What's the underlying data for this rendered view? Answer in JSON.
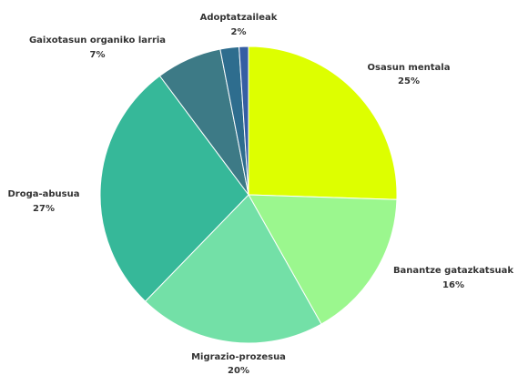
{
  "chart_data": {
    "type": "pie",
    "title": "",
    "slices": [
      {
        "label": "Osasun mentala",
        "value": 25,
        "pct_label": "25%",
        "color": "#ddff00"
      },
      {
        "label": "Banantze gatazkatsuak",
        "value": 16,
        "pct_label": "16%",
        "color": "#9bf78e"
      },
      {
        "label": "Migrazio-prozesua",
        "value": 20,
        "pct_label": "20%",
        "color": "#73e0a7"
      },
      {
        "label": "Droga-abusua",
        "value": 27,
        "pct_label": "27%",
        "color": "#36b899"
      },
      {
        "label": "Gaixotasun organiko larria",
        "value": 7,
        "pct_label": "7%",
        "color": "#3d7a86"
      },
      {
        "label": "Adoptatzaileak",
        "value": 2,
        "pct_label": "2%",
        "color": "#2e6d8e"
      },
      {
        "label": "",
        "value": 1,
        "pct_label": "",
        "color": "#355ea3"
      }
    ]
  }
}
